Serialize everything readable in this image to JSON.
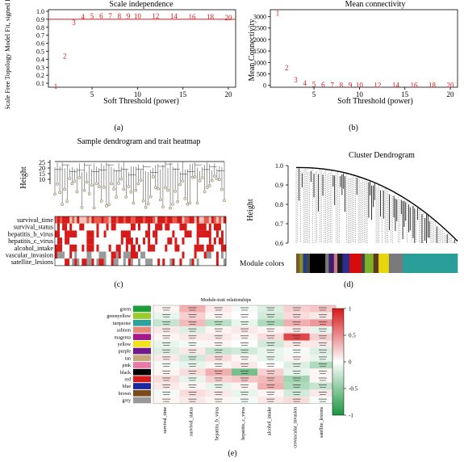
{
  "chart_data": [
    {
      "type": "scatter",
      "panel": "a",
      "title": "Scale independence",
      "xlabel": "Soft Threshold (power)",
      "ylabel": "Scale Free Topology Model Fit, signed R^2",
      "xticks": [
        5,
        10,
        15,
        20
      ],
      "yticks": [
        0.1,
        0.2,
        0.3,
        0.4,
        0.5,
        0.6,
        0.7,
        0.8,
        0.9,
        1.0
      ],
      "xlim": [
        0.2,
        20.8
      ],
      "ylim": [
        0.05,
        1.02
      ],
      "cutoff_line": 0.9,
      "points": [
        {
          "x": 1,
          "y": 0.06,
          "label": "1"
        },
        {
          "x": 2,
          "y": 0.44,
          "label": "2"
        },
        {
          "x": 3,
          "y": 0.86,
          "label": "3"
        },
        {
          "x": 4,
          "y": 0.93,
          "label": "4"
        },
        {
          "x": 5,
          "y": 0.94,
          "label": "5"
        },
        {
          "x": 6,
          "y": 0.94,
          "label": "6"
        },
        {
          "x": 7,
          "y": 0.94,
          "label": "7"
        },
        {
          "x": 8,
          "y": 0.94,
          "label": "8"
        },
        {
          "x": 9,
          "y": 0.94,
          "label": "9"
        },
        {
          "x": 10,
          "y": 0.94,
          "label": "10"
        },
        {
          "x": 12,
          "y": 0.94,
          "label": "12"
        },
        {
          "x": 14,
          "y": 0.94,
          "label": "14"
        },
        {
          "x": 16,
          "y": 0.93,
          "label": "16"
        },
        {
          "x": 18,
          "y": 0.93,
          "label": "18"
        },
        {
          "x": 20,
          "y": 0.92,
          "label": "20"
        }
      ],
      "point_color": "#d7191c",
      "line_color": "#d7191c"
    },
    {
      "type": "scatter",
      "panel": "b",
      "title": "Mean connectivity",
      "xlabel": "Soft Threshold (power)",
      "ylabel": "Mean Connectivity",
      "xticks": [
        5,
        10,
        15,
        20
      ],
      "yticks": [
        0,
        500,
        1000,
        1500,
        2000,
        2500,
        3000
      ],
      "xlim": [
        0.2,
        20.8
      ],
      "ylim": [
        -80,
        3300
      ],
      "points": [
        {
          "x": 1,
          "y": 3150,
          "label": "1"
        },
        {
          "x": 2,
          "y": 760,
          "label": "2"
        },
        {
          "x": 3,
          "y": 240,
          "label": "3"
        },
        {
          "x": 4,
          "y": 95,
          "label": "4"
        },
        {
          "x": 5,
          "y": 45,
          "label": "5"
        },
        {
          "x": 6,
          "y": 25,
          "label": "6"
        },
        {
          "x": 7,
          "y": 15,
          "label": "7"
        },
        {
          "x": 8,
          "y": 10,
          "label": "8"
        },
        {
          "x": 9,
          "y": 7,
          "label": "9"
        },
        {
          "x": 10,
          "y": 5,
          "label": "10"
        },
        {
          "x": 12,
          "y": 3,
          "label": "12"
        },
        {
          "x": 14,
          "y": 2,
          "label": "14"
        },
        {
          "x": 16,
          "y": 1,
          "label": "16"
        },
        {
          "x": 18,
          "y": 1,
          "label": "18"
        },
        {
          "x": 20,
          "y": 1,
          "label": "20"
        }
      ],
      "point_color": "#d7191c"
    },
    {
      "type": "heatmap",
      "panel": "c",
      "title": "Sample dendrogram and trait heatmap",
      "ylabel": "Height",
      "yticks": [
        10,
        15,
        20,
        25
      ],
      "traits": [
        "survival_time",
        "survival_status",
        "hepatitis_b_virus",
        "hepatitis_c_virus",
        "alcohol_intake",
        "vascular_invasion",
        "satellite_lesions"
      ]
    },
    {
      "type": "dendrogram",
      "panel": "d",
      "title": "Cluster Dendrogram",
      "ylabel": "Height",
      "yticks": [
        0.6,
        0.7,
        0.8,
        0.9,
        1.0
      ],
      "module_label": "Module colors",
      "module_strip": [
        {
          "color": "#7a5a28",
          "w": 1
        },
        {
          "color": "#8a8f2c",
          "w": 1
        },
        {
          "color": "#1c3f8a",
          "w": 1
        },
        {
          "color": "#444444",
          "w": 1
        },
        {
          "color": "#000000",
          "w": 4.5
        },
        {
          "color": "#7a7a7a",
          "w": 1
        },
        {
          "color": "#3a1d6e",
          "w": 1.5
        },
        {
          "color": "#c97b8a",
          "w": 1
        },
        {
          "color": "#1a1a1a",
          "w": 1.5
        },
        {
          "color": "#2c2c8c",
          "w": 2
        },
        {
          "color": "#d60c0c",
          "w": 3.5
        },
        {
          "color": "#444444",
          "w": 1
        },
        {
          "color": "#7fb02c",
          "w": 2.5
        },
        {
          "color": "#5d3a1a",
          "w": 1.5
        },
        {
          "color": "#e8d60c",
          "w": 3
        },
        {
          "color": "#7a7a7a",
          "w": 4
        },
        {
          "color": "#2a9f9a",
          "w": 16
        }
      ]
    },
    {
      "type": "heatmap",
      "panel": "e",
      "title": "Module-trait relationships",
      "rows": [
        "green",
        "greenyellow",
        "turquoise",
        "salmon",
        "magenta",
        "yellow",
        "purple",
        "tan",
        "pink",
        "black",
        "red",
        "blue",
        "brown",
        "grey"
      ],
      "row_colors": [
        "#1d9e3a",
        "#9acd2a",
        "#2aa39c",
        "#e88a7a",
        "#a8178a",
        "#f2e21a",
        "#6e1a8e",
        "#c9a878",
        "#e87aa8",
        "#000000",
        "#d61a1a",
        "#1a2a9e",
        "#7a4a1a",
        "#999999"
      ],
      "columns": [
        "survival_time",
        "survival_status",
        "hepatitis_b_virus",
        "hepatitis_c_virus",
        "alcohol_intake",
        "microvascular_invasion",
        "satellite_lesions"
      ],
      "values": [
        [
          0.05,
          0.35,
          0.1,
          -0.05,
          -0.15,
          0.2,
          0.25
        ],
        [
          -0.1,
          0.2,
          0.05,
          0.0,
          -0.2,
          0.15,
          0.1
        ],
        [
          -0.25,
          0.3,
          -0.3,
          -0.1,
          -0.35,
          0.35,
          0.45
        ],
        [
          0.1,
          -0.15,
          0.05,
          0.1,
          0.05,
          0.1,
          -0.1
        ],
        [
          0.05,
          0.1,
          0.1,
          0.05,
          0.15,
          0.8,
          0.2
        ],
        [
          -0.1,
          -0.05,
          0.05,
          0.0,
          -0.2,
          0.1,
          0.1
        ],
        [
          -0.15,
          0.1,
          -0.25,
          -0.2,
          -0.1,
          -0.05,
          -0.15
        ],
        [
          0.1,
          -0.2,
          0.15,
          0.05,
          -0.1,
          0.05,
          -0.1
        ],
        [
          -0.05,
          -0.1,
          0.05,
          0.1,
          0.0,
          -0.15,
          -0.35
        ],
        [
          0.05,
          0.15,
          0.35,
          -0.6,
          0.2,
          -0.1,
          0.05
        ],
        [
          0.15,
          -0.1,
          0.2,
          0.25,
          0.3,
          -0.4,
          0.05
        ],
        [
          0.1,
          0.05,
          -0.1,
          0.05,
          0.35,
          -0.35,
          -0.25
        ],
        [
          -0.05,
          0.15,
          0.1,
          -0.1,
          0.05,
          -0.2,
          0.1
        ],
        [
          0.05,
          0.1,
          0.05,
          -0.05,
          0.1,
          0.15,
          -0.05
        ]
      ],
      "colorbar_ticks": [
        "1",
        "0.5",
        "0",
        "-0.5",
        "-1"
      ],
      "colorbar": {
        "high": "#d7191c",
        "mid": "#ffffff",
        "low": "#1a9641"
      }
    }
  ],
  "captions": {
    "a": "(a)",
    "b": "(b)",
    "c": "(c)",
    "d": "(d)",
    "e": "(e)"
  }
}
